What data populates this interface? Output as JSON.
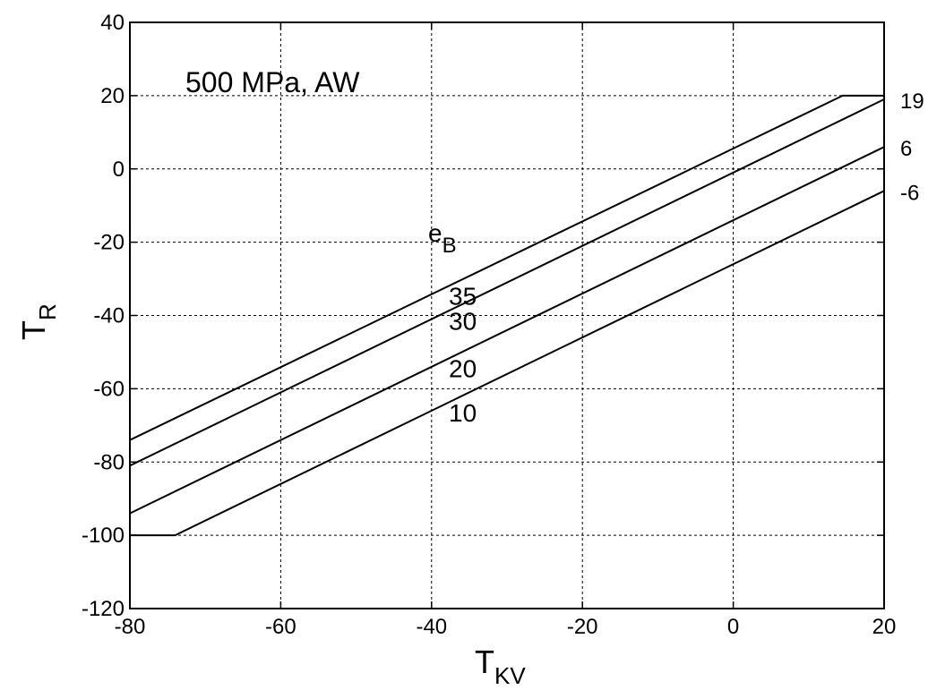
{
  "chart_data": {
    "type": "line",
    "title": "",
    "annotation": "500 MPa, AW",
    "xlabel": {
      "main": "T",
      "sub": "KV"
    },
    "ylabel": {
      "main": "T",
      "sub": "R"
    },
    "xlim": [
      -80,
      20
    ],
    "ylim": [
      -120,
      40
    ],
    "xticks": [
      -80,
      -60,
      -40,
      -20,
      0,
      20
    ],
    "yticks": [
      -120,
      -100,
      -80,
      -60,
      -40,
      -20,
      0,
      20,
      40
    ],
    "grid": true,
    "legend_title": {
      "main": "e",
      "sub": "B"
    },
    "series": [
      {
        "name": "35",
        "x": [
          -80,
          14.5,
          20
        ],
        "y": [
          -74,
          20,
          20
        ]
      },
      {
        "name": "30",
        "x": [
          -80,
          20
        ],
        "y": [
          -81,
          19
        ]
      },
      {
        "name": "20",
        "x": [
          -80,
          20
        ],
        "y": [
          -94,
          6
        ]
      },
      {
        "name": "10",
        "x": [
          -80,
          -74,
          20
        ],
        "y": [
          -100,
          -100,
          -6
        ]
      }
    ],
    "right_end_labels": [
      "19",
      "6",
      "-6"
    ]
  }
}
